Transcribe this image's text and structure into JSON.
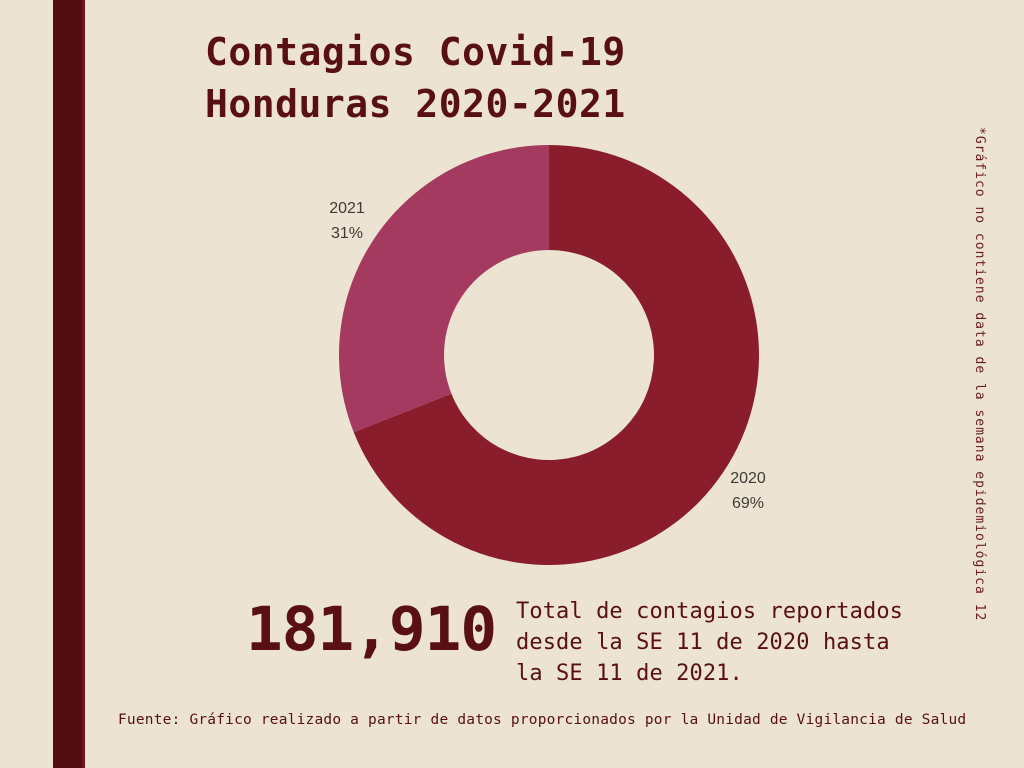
{
  "page": {
    "background": "#ECE3D3",
    "accent_bar_color": "#520D11",
    "text_color": "#581015"
  },
  "header": {
    "title_line1": "Contagios Covid-19",
    "title_line2": "Honduras 2020-2021"
  },
  "chart_data": {
    "type": "donut",
    "title": "Contagios Covid-19 Honduras 2020-2021",
    "categories": [
      "2020",
      "2021"
    ],
    "values": [
      69,
      31
    ],
    "unit": "%",
    "colors": [
      "#8A1D2B",
      "#A43A5F"
    ],
    "inner_radius_ratio": 0.5,
    "start_angle_deg": 0,
    "clockwise": true,
    "legend_position": "outside-labels",
    "labels": [
      {
        "year": "2020",
        "pct": "69%"
      },
      {
        "year": "2021",
        "pct": "31%"
      }
    ]
  },
  "summary": {
    "total": "181,910",
    "description_lines": [
      "Total de contagios reportados",
      "desde la SE 11 de 2020 hasta",
      "la SE 11 de 2021."
    ]
  },
  "footnote_vertical": "*Gráfico no contiene data de la semana epidemiológica 12",
  "footer": {
    "source": "Fuente: Gráfico realizado a partir de datos proporcionados por la Unidad de Vigilancia de Salud"
  }
}
